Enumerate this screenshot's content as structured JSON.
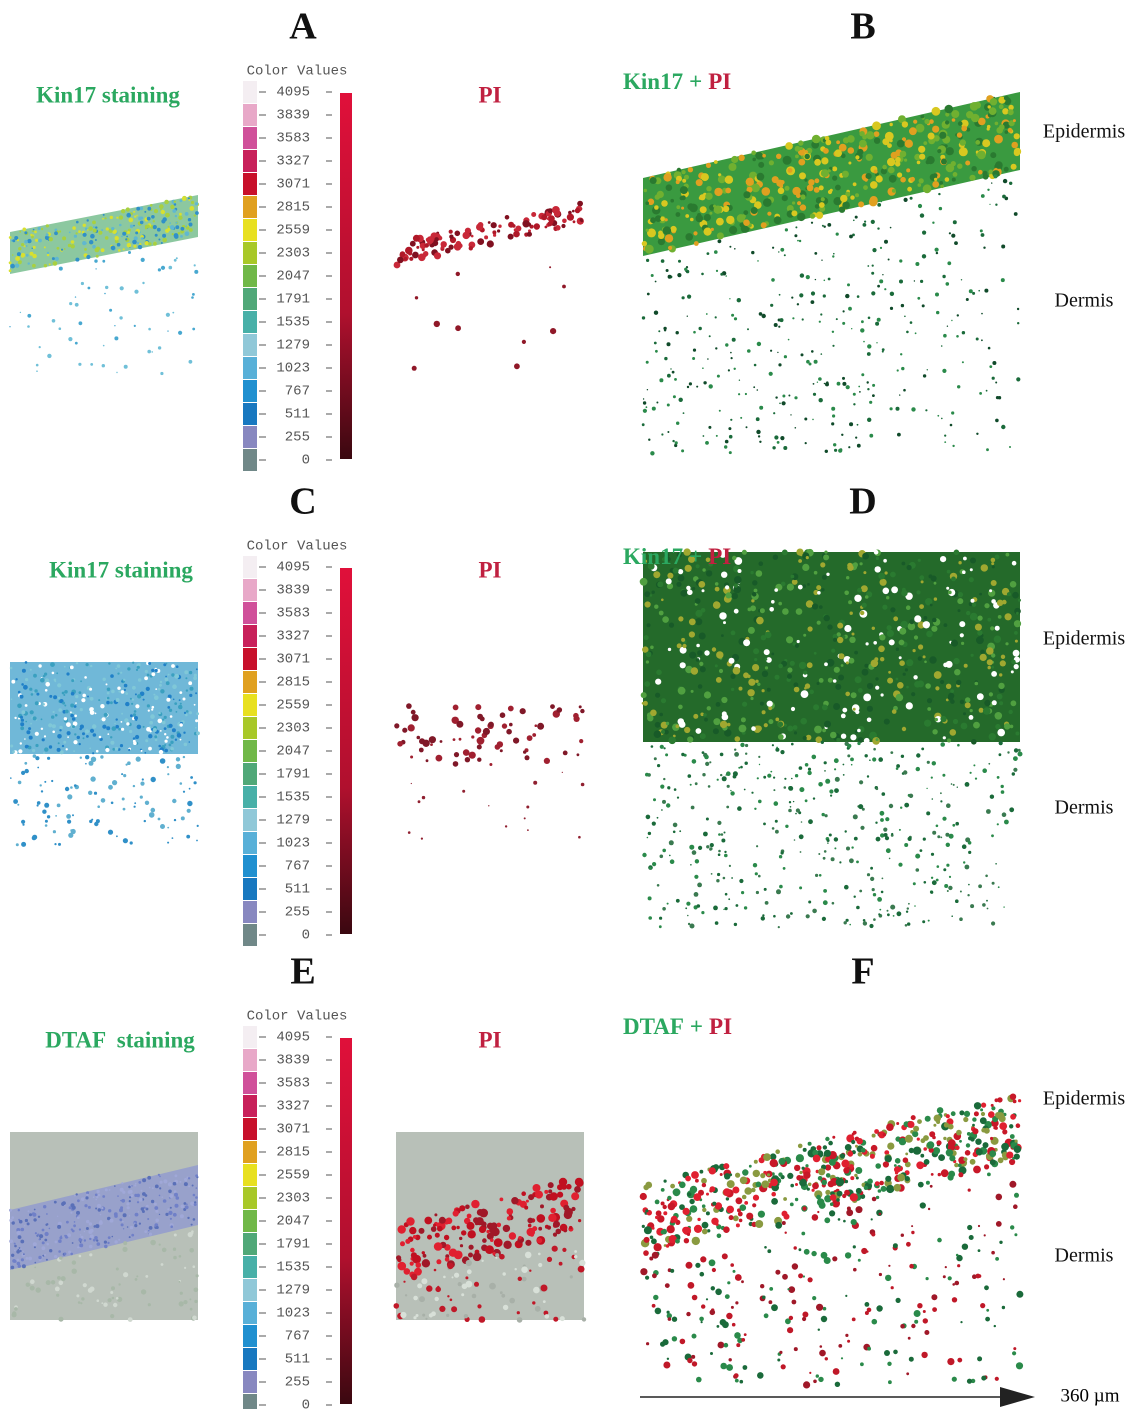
{
  "panels": [
    {
      "letters": [
        "A",
        "B"
      ],
      "stain_label": "Kin17 staining",
      "color_scale": {
        "title": "Color Values",
        "ticks": [
          4095,
          3839,
          3583,
          3327,
          3071,
          2815,
          2559,
          2303,
          2047,
          1791,
          1535,
          1279,
          1023,
          767,
          511,
          255,
          0
        ]
      },
      "pi_label": "PI",
      "merge_label": {
        "green": "Kin17",
        "plus": "+",
        "red": "PI"
      },
      "regions": [
        "Epidermis",
        "Dermis"
      ]
    },
    {
      "letters": [
        "C",
        "D"
      ],
      "stain_label": "Kin17 staining",
      "color_scale": {
        "title": "Color Values",
        "ticks": [
          4095,
          3839,
          3583,
          3327,
          3071,
          2815,
          2559,
          2303,
          2047,
          1791,
          1535,
          1279,
          1023,
          767,
          511,
          255,
          0
        ]
      },
      "pi_label": "PI",
      "merge_label": {
        "green": "Kin17",
        "plus": "+",
        "red": "PI"
      },
      "regions": [
        "Epidermis",
        "Dermis"
      ]
    },
    {
      "letters": [
        "E",
        "F"
      ],
      "stain_label": "DTAF  staining",
      "color_scale": {
        "title": "Color Values",
        "ticks": [
          4095,
          3839,
          3583,
          3327,
          3071,
          2815,
          2559,
          2303,
          2047,
          1791,
          1535,
          1279,
          1023,
          767,
          511,
          255,
          0
        ]
      },
      "pi_label": "PI",
      "merge_label": {
        "green": "DTAF",
        "plus": "+",
        "red": "PI"
      },
      "regions": [
        "Epidermis",
        "Dermis"
      ]
    }
  ],
  "scale_bar": "360 µm"
}
